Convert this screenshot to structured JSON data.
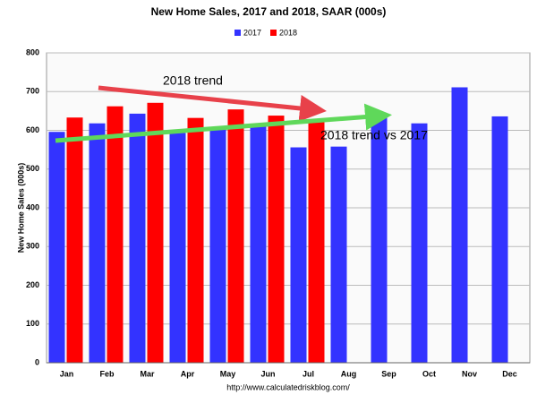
{
  "chart_data": {
    "type": "bar",
    "title": "New Home Sales,  2017 and 2018, SAAR (000s)",
    "y_label": "New Home Sales (000s)",
    "source": "http://www.calculatedriskblog.com/",
    "annotations": [
      "2018 trend",
      "2018 trend vs 2017"
    ],
    "categories": [
      "Jan",
      "Feb",
      "Mar",
      "Apr",
      "May",
      "Jun",
      "Jul",
      "Aug",
      "Sep",
      "Oct",
      "Nov",
      "Dec"
    ],
    "series": [
      {
        "name": "2017",
        "color": "#3333ff",
        "values": [
          596,
          618,
          643,
          593,
          608,
          614,
          556,
          558,
          637,
          618,
          711,
          636
        ]
      },
      {
        "name": "2018",
        "color": "#ff0000",
        "values": [
          633,
          662,
          671,
          632,
          654,
          638,
          627,
          null,
          null,
          null,
          null,
          null
        ]
      }
    ],
    "ylim": [
      0,
      800
    ],
    "yticks": [
      0,
      100,
      200,
      300,
      400,
      500,
      600,
      700,
      800
    ],
    "grid": true
  }
}
